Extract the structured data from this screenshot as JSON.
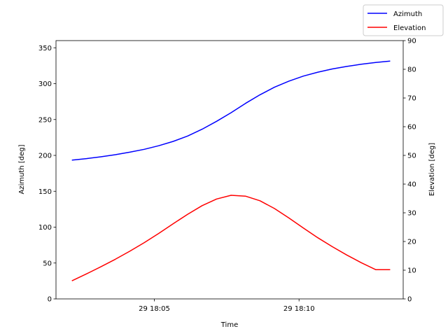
{
  "chart_data": {
    "type": "line",
    "title": "",
    "xlabel": "Time",
    "ylabel_left": "Azimuth [deg]",
    "ylabel_right": "Elevation [deg]",
    "x_ticks": [
      "29 18:05",
      "29 18:10"
    ],
    "x_tick_minutes": [
      5,
      10
    ],
    "x_range_minutes": [
      1.6,
      13.6
    ],
    "ylim_left": [
      0,
      360
    ],
    "yticks_left": [
      0,
      50,
      100,
      150,
      200,
      250,
      300,
      350
    ],
    "ylim_right": [
      0,
      90
    ],
    "yticks_right": [
      0,
      10,
      20,
      30,
      40,
      50,
      60,
      70,
      80,
      90
    ],
    "grid": false,
    "legend_position": "top-right",
    "x_minutes": [
      2.15,
      2.65,
      3.15,
      3.65,
      4.15,
      4.65,
      5.15,
      5.65,
      6.15,
      6.65,
      7.15,
      7.65,
      8.15,
      8.65,
      9.15,
      9.65,
      10.15,
      10.65,
      11.15,
      11.65,
      12.15,
      12.65,
      13.15
    ],
    "series": [
      {
        "name": "Azimuth",
        "color": "#0000ff",
        "axis": "left",
        "values": [
          193.5,
          195.5,
          198,
          201,
          204.5,
          208.5,
          213.5,
          219.5,
          227,
          236.5,
          247.5,
          259.5,
          272.5,
          284.5,
          295,
          303.5,
          310.5,
          316,
          320.5,
          324,
          327,
          329.5,
          331.5
        ]
      },
      {
        "name": "Elevation",
        "color": "#ff0000",
        "axis": "right",
        "values": [
          6.3,
          8.7,
          11.2,
          13.8,
          16.6,
          19.6,
          22.8,
          26.2,
          29.5,
          32.5,
          34.8,
          36.1,
          35.8,
          34.2,
          31.5,
          28.2,
          24.7,
          21.3,
          18.2,
          15.3,
          12.6,
          10.2,
          10.2
        ]
      }
    ]
  }
}
